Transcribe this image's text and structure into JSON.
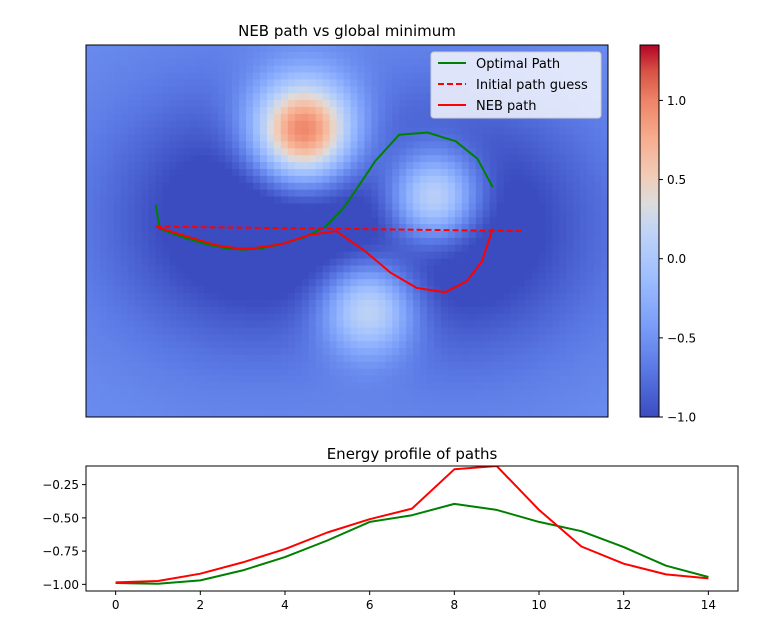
{
  "chart_data": [
    {
      "type": "heatmap",
      "title": "NEB path vs global minimum",
      "xlabel": "",
      "ylabel": "",
      "axes_visible": false,
      "colormap": "coolwarm",
      "colors": {
        "low": "#3b4cc0",
        "mid": "#dddddd",
        "high": "#b40426"
      },
      "domain": {
        "x": [
          -1.2,
          1.2
        ],
        "y": [
          -0.85,
          0.85
        ]
      },
      "field": {
        "base": -0.55,
        "wells": [
          {
            "x": -0.5,
            "y": 0.05,
            "amp": -0.55,
            "sx": 0.42,
            "sy": 0.4
          },
          {
            "x": 0.55,
            "y": 0.0,
            "amp": -0.55,
            "sx": 0.42,
            "sy": 0.4
          },
          {
            "x": 0.05,
            "y": 0.1,
            "amp": -0.2,
            "sx": 0.6,
            "sy": 0.35
          }
        ],
        "bumps": [
          {
            "x": -0.2,
            "y": 0.45,
            "amp": 1.95,
            "s": 0.17
          },
          {
            "x": 0.4,
            "y": 0.15,
            "amp": 1.35,
            "s": 0.15
          },
          {
            "x": 0.1,
            "y": -0.35,
            "amp": 1.1,
            "s": 0.15
          }
        ]
      },
      "series": [
        {
          "name": "Optimal Path",
          "color": "#008000",
          "dash": "solid",
          "points": [
            [
              -0.88,
              0.12
            ],
            [
              -0.86,
              0.01
            ],
            [
              -0.75,
              -0.03
            ],
            [
              -0.65,
              -0.06
            ],
            [
              -0.55,
              -0.08
            ],
            [
              -0.48,
              -0.085
            ],
            [
              -0.4,
              -0.08
            ],
            [
              -0.3,
              -0.06
            ],
            [
              -0.2,
              -0.03
            ],
            [
              -0.1,
              0.02
            ],
            [
              -0.02,
              0.1
            ],
            [
              0.05,
              0.2
            ],
            [
              0.13,
              0.32
            ],
            [
              0.24,
              0.44
            ],
            [
              0.37,
              0.45
            ],
            [
              0.5,
              0.41
            ],
            [
              0.6,
              0.33
            ],
            [
              0.67,
              0.2
            ]
          ]
        },
        {
          "name": "Initial path guess",
          "color": "#ff0000",
          "dash": "dashed",
          "points": [
            [
              -0.88,
              0.02
            ],
            [
              0.8,
              0.0
            ]
          ]
        },
        {
          "name": "NEB path",
          "color": "#ff0000",
          "dash": "solid",
          "points": [
            [
              -0.88,
              0.02
            ],
            [
              -0.72,
              -0.03
            ],
            [
              -0.6,
              -0.065
            ],
            [
              -0.5,
              -0.08
            ],
            [
              -0.44,
              -0.08
            ],
            [
              -0.3,
              -0.06
            ],
            [
              -0.18,
              -0.02
            ],
            [
              -0.05,
              0.0
            ],
            [
              0.08,
              -0.09
            ],
            [
              0.2,
              -0.19
            ],
            [
              0.32,
              -0.26
            ],
            [
              0.45,
              -0.28
            ],
            [
              0.55,
              -0.23
            ],
            [
              0.62,
              -0.14
            ],
            [
              0.67,
              0.01
            ]
          ]
        }
      ],
      "colorbar": {
        "range": [
          -1.0,
          1.35
        ],
        "ticks": [
          -1.0,
          -0.5,
          0.0,
          0.5,
          1.0
        ],
        "tick_labels": [
          "−1.0",
          "−0.5",
          "0.0",
          "0.5",
          "1.0"
        ]
      },
      "legend_position": "upper-right"
    },
    {
      "type": "line",
      "title": "Energy profile of paths",
      "xlabel": "",
      "ylabel": "",
      "x": [
        0,
        1,
        2,
        3,
        4,
        5,
        6,
        7,
        8,
        9,
        10,
        11,
        12,
        13,
        14
      ],
      "xlim": [
        -0.7,
        14.7
      ],
      "ylim": [
        -1.05,
        -0.11
      ],
      "x_ticks": [
        0,
        2,
        4,
        6,
        8,
        10,
        12,
        14
      ],
      "y_ticks": [
        -1.0,
        -0.75,
        -0.5,
        -0.25
      ],
      "y_tick_labels": [
        "−1.00",
        "−0.75",
        "−0.50",
        "−0.25"
      ],
      "series": [
        {
          "name": "Optimal Path",
          "color": "#008000",
          "values": [
            -0.99,
            -0.995,
            -0.97,
            -0.895,
            -0.795,
            -0.67,
            -0.53,
            -0.48,
            -0.395,
            -0.44,
            -0.53,
            -0.6,
            -0.72,
            -0.86,
            -0.945
          ]
        },
        {
          "name": "NEB path",
          "color": "#ff0000",
          "values": [
            -0.985,
            -0.975,
            -0.92,
            -0.835,
            -0.735,
            -0.61,
            -0.51,
            -0.43,
            -0.135,
            -0.11,
            -0.44,
            -0.715,
            -0.845,
            -0.925,
            -0.955
          ]
        }
      ]
    }
  ]
}
